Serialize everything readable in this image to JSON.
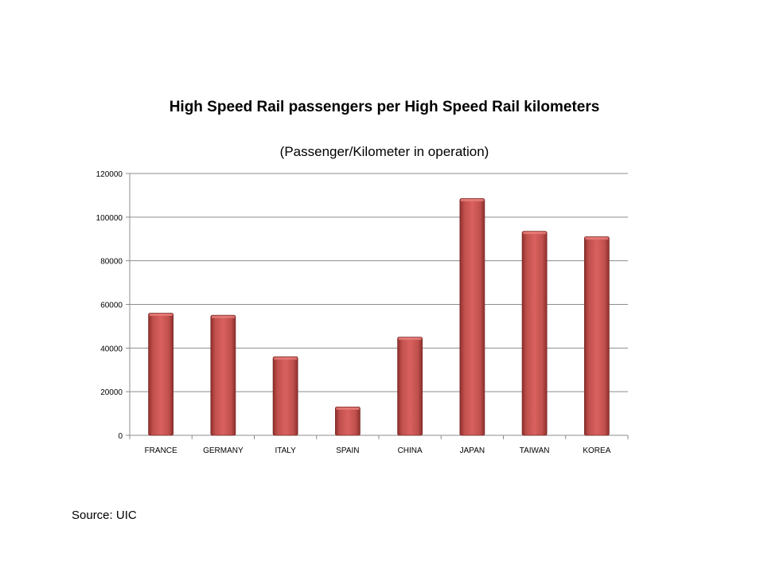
{
  "chart_data": {
    "type": "bar",
    "title": "High Speed Rail passengers per High Speed Rail kilometers",
    "subtitle": "(Passenger/Kilometer  in operation)",
    "xlabel": "",
    "ylabel": "",
    "categories": [
      "FRANCE",
      "GERMANY",
      "ITALY",
      "SPAIN",
      "CHINA",
      "JAPAN",
      "TAIWAN",
      "KOREA"
    ],
    "series": [
      {
        "values": [
          56000,
          55000,
          36000,
          13000,
          45000,
          108500,
          93500,
          91000
        ],
        "color": "#c0504d"
      }
    ],
    "ylim": [
      0,
      120000
    ],
    "yticks": [
      0,
      20000,
      40000,
      60000,
      80000,
      100000,
      120000
    ],
    "grid": true,
    "legend": "none"
  },
  "source": "Source: UIC"
}
